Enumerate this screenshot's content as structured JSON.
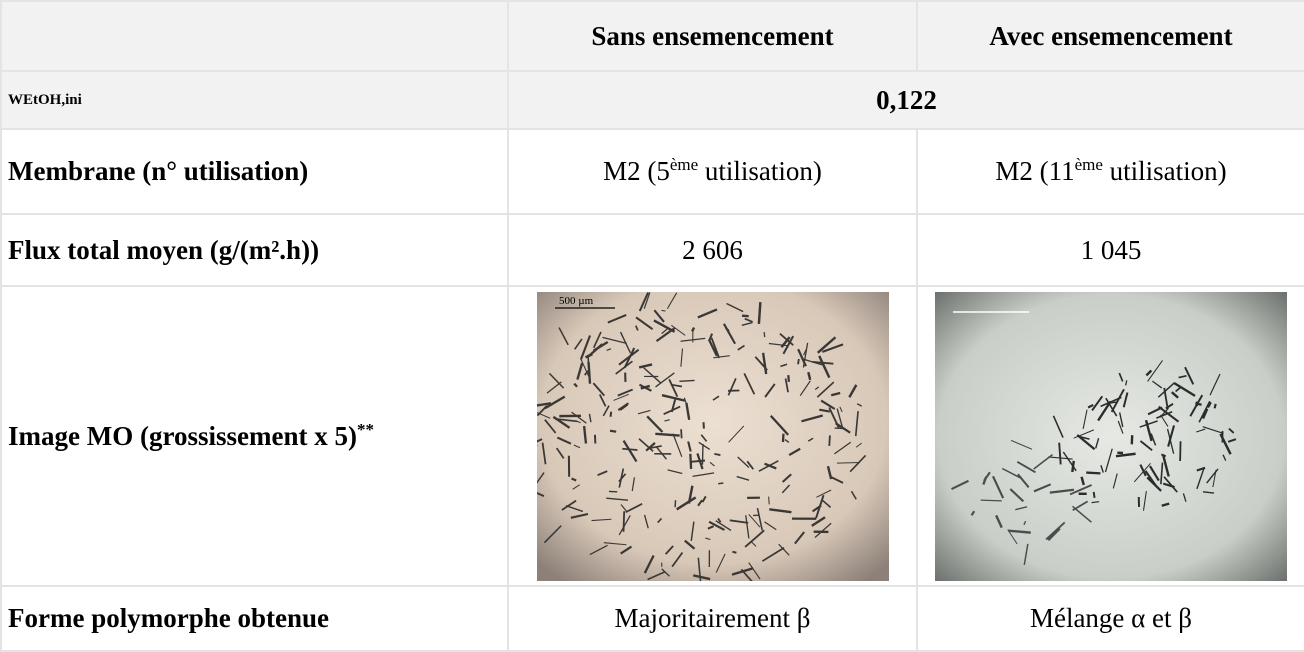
{
  "table": {
    "header": [
      "Sans ensemencement",
      "Avec ensemencement"
    ],
    "w_row": {
      "label_main": "W",
      "label_sub": "EtOH,ini",
      "value": "0,122"
    },
    "membrane_row": {
      "label": "Membrane (n° utilisation)",
      "cells": [
        {
          "prefix": "M2 (5",
          "sup": "ème",
          "suffix": " utilisation)"
        },
        {
          "prefix": "M2 (11",
          "sup": "ème",
          "suffix": " utilisation)"
        }
      ]
    },
    "flux_row": {
      "label": "Flux total moyen (g/(m².h))",
      "cells": [
        "2 606",
        "1 045"
      ]
    },
    "image_row": {
      "label": "Image MO (grossissement x 5)",
      "label_sup": "**",
      "scale_label": "500 µm"
    },
    "form_row": {
      "label": "Forme polymorphe obtenue",
      "cells": [
        "Majoritairement β",
        "Mélange α et β"
      ]
    }
  }
}
